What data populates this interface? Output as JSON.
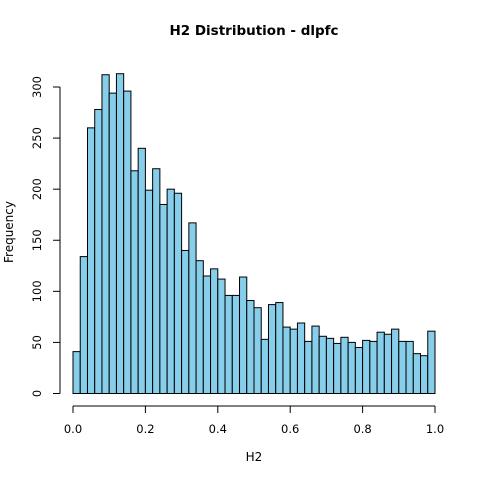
{
  "chart_data": {
    "type": "bar",
    "title": "H2 Distribution - dlpfc",
    "xlabel": "H2",
    "ylabel": "Frequency",
    "bar_color": "#87CEEB",
    "xlim": [
      0,
      1
    ],
    "ylim": [
      0,
      320
    ],
    "x_ticks": [
      0.0,
      0.2,
      0.4,
      0.6,
      0.8,
      1.0
    ],
    "x_tick_labels": [
      "0.0",
      "0.2",
      "0.4",
      "0.6",
      "0.8",
      "1.0"
    ],
    "y_ticks": [
      0,
      50,
      100,
      150,
      200,
      250,
      300
    ],
    "y_tick_labels": [
      "0",
      "50",
      "100",
      "150",
      "200",
      "250",
      "300"
    ],
    "bin_width": 0.02,
    "bin_starts": [
      0.0,
      0.02,
      0.04,
      0.06,
      0.08,
      0.1,
      0.12,
      0.14,
      0.16,
      0.18,
      0.2,
      0.22,
      0.24,
      0.26,
      0.28,
      0.3,
      0.32,
      0.34,
      0.36,
      0.38,
      0.4,
      0.42,
      0.44,
      0.46,
      0.48,
      0.5,
      0.52,
      0.54,
      0.56,
      0.58,
      0.6,
      0.62,
      0.64,
      0.66,
      0.68,
      0.7,
      0.72,
      0.74,
      0.76,
      0.78,
      0.8,
      0.82,
      0.84,
      0.86,
      0.88,
      0.9,
      0.92,
      0.94,
      0.96,
      0.98
    ],
    "values": [
      41,
      134,
      260,
      278,
      312,
      294,
      313,
      296,
      218,
      240,
      199,
      220,
      185,
      200,
      196,
      140,
      167,
      130,
      115,
      122,
      112,
      96,
      96,
      114,
      91,
      84,
      53,
      87,
      89,
      65,
      63,
      69,
      51,
      66,
      56,
      54,
      49,
      55,
      50,
      45,
      52,
      51,
      60,
      58,
      63,
      51,
      51,
      39,
      37,
      61
    ]
  }
}
